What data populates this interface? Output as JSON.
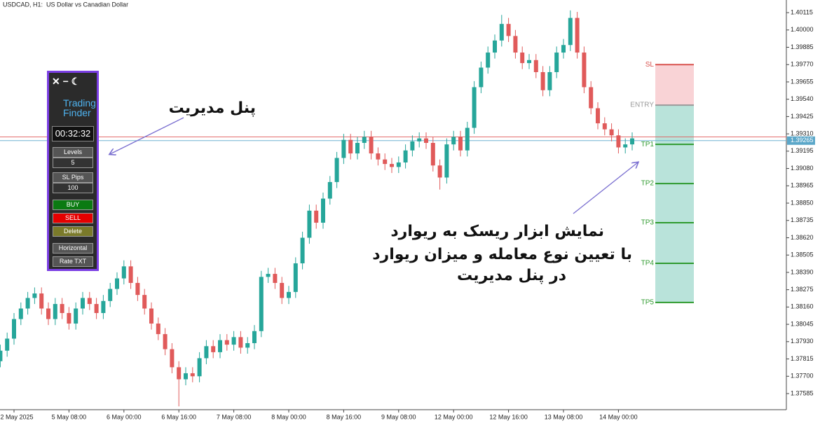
{
  "chart_data": {
    "type": "candlestick",
    "title": "USDCAD, H1:  US Dollar vs Canadian Dollar",
    "up_color": "#26a69a",
    "down_color": "#e05a5a",
    "bid_color": "#5ba7c9",
    "ask_color": "#e05a5a",
    "bid": 1.39265,
    "ask": 1.3929,
    "ylim": [
      1.37478,
      1.40199
    ],
    "yticks": [
      1.40115,
      {
        "value": 1.4,
        "label": "1.40000"
      },
      1.39885,
      {
        "value": 1.3977,
        "label": "1.39770"
      },
      1.39655,
      {
        "value": 1.3954,
        "label": "1.39540"
      },
      1.39425,
      {
        "value": 1.3931,
        "label": "1.39310"
      },
      1.39195,
      {
        "value": 1.3908,
        "label": "1.39080"
      },
      1.38965,
      {
        "value": 1.3885,
        "label": "1.38850"
      },
      1.38735,
      {
        "value": 1.3862,
        "label": "1.38620"
      },
      1.38505,
      {
        "value": 1.3839,
        "label": "1.38390"
      },
      1.38275,
      {
        "value": 1.3816,
        "label": "1.38160"
      },
      1.38045,
      {
        "value": 1.3793,
        "label": "1.37930"
      },
      1.37815,
      {
        "value": 1.377,
        "label": "1.37700"
      },
      1.37585
    ],
    "categories": [
      null,
      null,
      "2 May 2025",
      null,
      null,
      null,
      null,
      null,
      null,
      null,
      "5 May 08:00",
      null,
      null,
      null,
      null,
      null,
      null,
      null,
      "6 May 00:00",
      null,
      null,
      null,
      null,
      null,
      null,
      null,
      "6 May 16:00",
      null,
      null,
      null,
      null,
      null,
      null,
      null,
      "7 May 08:00",
      null,
      null,
      null,
      null,
      null,
      null,
      null,
      "8 May 00:00",
      null,
      null,
      null,
      null,
      null,
      null,
      null,
      "8 May 16:00",
      null,
      null,
      null,
      null,
      null,
      null,
      null,
      "9 May 08:00",
      null,
      null,
      null,
      null,
      null,
      null,
      null,
      "12 May 00:00",
      null,
      null,
      null,
      null,
      null,
      null,
      null,
      "12 May 16:00",
      null,
      null,
      null,
      null,
      null,
      null,
      null,
      "13 May 08:00",
      null,
      null,
      null,
      null,
      null,
      null,
      null,
      "14 May 00:00",
      null,
      null
    ],
    "candles": [
      [
        1.378,
        1.3791,
        1.3776,
        1.3787
      ],
      [
        1.3787,
        1.3799,
        1.3783,
        1.3795
      ],
      [
        1.3795,
        1.3812,
        1.3791,
        1.3808
      ],
      [
        1.3808,
        1.3819,
        1.3804,
        1.3815
      ],
      [
        1.3815,
        1.3826,
        1.3811,
        1.3822
      ],
      [
        1.3822,
        1.3829,
        1.3818,
        1.3825
      ],
      [
        1.3825,
        1.3829,
        1.3811,
        1.3815
      ],
      [
        1.3815,
        1.3819,
        1.3804,
        1.3808
      ],
      [
        1.3808,
        1.3822,
        1.3804,
        1.3818
      ],
      [
        1.3818,
        1.3822,
        1.3808,
        1.3812
      ],
      [
        1.3812,
        1.3816,
        1.3801,
        1.3805
      ],
      [
        1.3805,
        1.3819,
        1.3801,
        1.3815
      ],
      [
        1.3815,
        1.3826,
        1.3811,
        1.3822
      ],
      [
        1.3822,
        1.3826,
        1.3814,
        1.3818
      ],
      [
        1.3818,
        1.3822,
        1.3808,
        1.3812
      ],
      [
        1.3812,
        1.3824,
        1.3808,
        1.382
      ],
      [
        1.382,
        1.3832,
        1.3816,
        1.3828
      ],
      [
        1.3828,
        1.3839,
        1.3824,
        1.3835
      ],
      [
        1.3835,
        1.3847,
        1.3831,
        1.3843
      ],
      [
        1.3843,
        1.3847,
        1.3828,
        1.3832
      ],
      [
        1.3832,
        1.3836,
        1.382,
        1.3824
      ],
      [
        1.3824,
        1.3828,
        1.3811,
        1.3815
      ],
      [
        1.3815,
        1.3819,
        1.3801,
        1.3805
      ],
      [
        1.3805,
        1.3809,
        1.3794,
        1.3798
      ],
      [
        1.3798,
        1.3802,
        1.3784,
        1.3788
      ],
      [
        1.3788,
        1.3792,
        1.3772,
        1.3776
      ],
      [
        1.3776,
        1.378,
        1.375,
        1.3768
      ],
      [
        1.3768,
        1.3776,
        1.3764,
        1.3772
      ],
      [
        1.3772,
        1.3776,
        1.3766,
        1.377
      ],
      [
        1.377,
        1.3786,
        1.3766,
        1.3782
      ],
      [
        1.3782,
        1.3794,
        1.3778,
        1.379
      ],
      [
        1.379,
        1.3794,
        1.3782,
        1.3786
      ],
      [
        1.3786,
        1.3798,
        1.3782,
        1.3794
      ],
      [
        1.3794,
        1.3798,
        1.3787,
        1.3791
      ],
      [
        1.3791,
        1.38,
        1.3787,
        1.3796
      ],
      [
        1.3796,
        1.38,
        1.3785,
        1.3789
      ],
      [
        1.3789,
        1.3796,
        1.3785,
        1.3792
      ],
      [
        1.3792,
        1.3804,
        1.3788,
        1.38
      ],
      [
        1.38,
        1.384,
        1.3796,
        1.3836
      ],
      [
        1.3836,
        1.3842,
        1.3832,
        1.3838
      ],
      [
        1.3838,
        1.3842,
        1.3828,
        1.3832
      ],
      [
        1.3832,
        1.3836,
        1.3818,
        1.3822
      ],
      [
        1.3822,
        1.383,
        1.3818,
        1.3826
      ],
      [
        1.3826,
        1.3849,
        1.3822,
        1.3845
      ],
      [
        1.3845,
        1.3866,
        1.3841,
        1.3862
      ],
      [
        1.3862,
        1.3884,
        1.3858,
        1.388
      ],
      [
        1.388,
        1.3884,
        1.3868,
        1.3872
      ],
      [
        1.3872,
        1.3892,
        1.3868,
        1.3888
      ],
      [
        1.3888,
        1.3903,
        1.3884,
        1.3899
      ],
      [
        1.3899,
        1.3919,
        1.3895,
        1.3915
      ],
      [
        1.3915,
        1.3931,
        1.3911,
        1.3927
      ],
      [
        1.3927,
        1.3931,
        1.3914,
        1.3918
      ],
      [
        1.3918,
        1.3929,
        1.3914,
        1.3925
      ],
      [
        1.3925,
        1.3933,
        1.3921,
        1.3929
      ],
      [
        1.3929,
        1.3933,
        1.3914,
        1.3918
      ],
      [
        1.3918,
        1.3922,
        1.391,
        1.3914
      ],
      [
        1.3914,
        1.3918,
        1.3907,
        1.3911
      ],
      [
        1.3911,
        1.3915,
        1.3905,
        1.3909
      ],
      [
        1.3909,
        1.3916,
        1.3905,
        1.3912
      ],
      [
        1.3912,
        1.3924,
        1.3908,
        1.392
      ],
      [
        1.392,
        1.393,
        1.3916,
        1.3926
      ],
      [
        1.3926,
        1.3932,
        1.3922,
        1.3928
      ],
      [
        1.3928,
        1.3932,
        1.3921,
        1.3925
      ],
      [
        1.3925,
        1.3929,
        1.3906,
        1.391
      ],
      [
        1.391,
        1.3914,
        1.3894,
        1.3902
      ],
      [
        1.3902,
        1.3928,
        1.3898,
        1.3924
      ],
      [
        1.3924,
        1.3933,
        1.392,
        1.3929
      ],
      [
        1.3929,
        1.3933,
        1.3916,
        1.392
      ],
      [
        1.392,
        1.3939,
        1.3916,
        1.3935
      ],
      [
        1.3935,
        1.3966,
        1.3931,
        1.3962
      ],
      [
        1.3962,
        1.3979,
        1.3958,
        1.3975
      ],
      [
        1.3975,
        1.3989,
        1.3971,
        1.3985
      ],
      [
        1.3985,
        1.3997,
        1.3981,
        1.3993
      ],
      [
        1.3993,
        1.401,
        1.3989,
        1.4004
      ],
      [
        1.4004,
        1.4008,
        1.3992,
        1.3996
      ],
      [
        1.3996,
        1.4,
        1.3981,
        1.3985
      ],
      [
        1.3985,
        1.3989,
        1.3974,
        1.3978
      ],
      [
        1.3978,
        1.3984,
        1.3974,
        1.398
      ],
      [
        1.398,
        1.3984,
        1.3968,
        1.3972
      ],
      [
        1.3972,
        1.3976,
        1.3956,
        1.396
      ],
      [
        1.396,
        1.3976,
        1.3956,
        1.3972
      ],
      [
        1.3972,
        1.3989,
        1.3968,
        1.3985
      ],
      [
        1.3985,
        1.3994,
        1.3981,
        1.399
      ],
      [
        1.399,
        1.4013,
        1.3986,
        1.4008
      ],
      [
        1.4008,
        1.4012,
        1.3981,
        1.3985
      ],
      [
        1.3985,
        1.3989,
        1.3958,
        1.3962
      ],
      [
        1.3962,
        1.3966,
        1.3944,
        1.3948
      ],
      [
        1.3948,
        1.3952,
        1.3934,
        1.3938
      ],
      [
        1.3938,
        1.3942,
        1.393,
        1.3934
      ],
      [
        1.3934,
        1.3938,
        1.3926,
        1.393
      ],
      [
        1.393,
        1.3934,
        1.3918,
        1.3922
      ],
      [
        1.3922,
        1.3928,
        1.3918,
        1.3924
      ],
      [
        1.3924,
        1.3932,
        1.392,
        1.3928
      ]
    ],
    "risk_levels": [
      {
        "label": "SL",
        "value": 1.3977,
        "color": "#d9534f"
      },
      {
        "label": "ENTRY",
        "value": 1.39501,
        "color": "#9a9a9a"
      },
      {
        "label": "TP1",
        "value": 1.3924,
        "color": "#2e9a2e"
      },
      {
        "label": "TP2",
        "value": 1.3898,
        "color": "#2e9a2e"
      },
      {
        "label": "TP3",
        "value": 1.3872,
        "color": "#2e9a2e"
      },
      {
        "label": "TP4",
        "value": 1.3845,
        "color": "#2e9a2e"
      },
      {
        "label": "TP5",
        "value": 1.3819,
        "color": "#2e9a2e"
      }
    ],
    "annotations": [
      "پنل مدیریت",
      "نمایش ابزار ریسک به ریوارد",
      "با تعیین نوع معامله و میزان ریوارد",
      "در پنل مدیریت"
    ]
  },
  "panel": {
    "logo": [
      "Trading",
      "Finder"
    ],
    "timer": "00:32:32",
    "fields": [
      {
        "label": "Levels",
        "value": 5
      },
      {
        "label": "SL Pips",
        "value": 100
      }
    ],
    "buttons": [
      "BUY",
      "SELL",
      "Delete",
      "Horizontal",
      "Rate TXT"
    ]
  }
}
